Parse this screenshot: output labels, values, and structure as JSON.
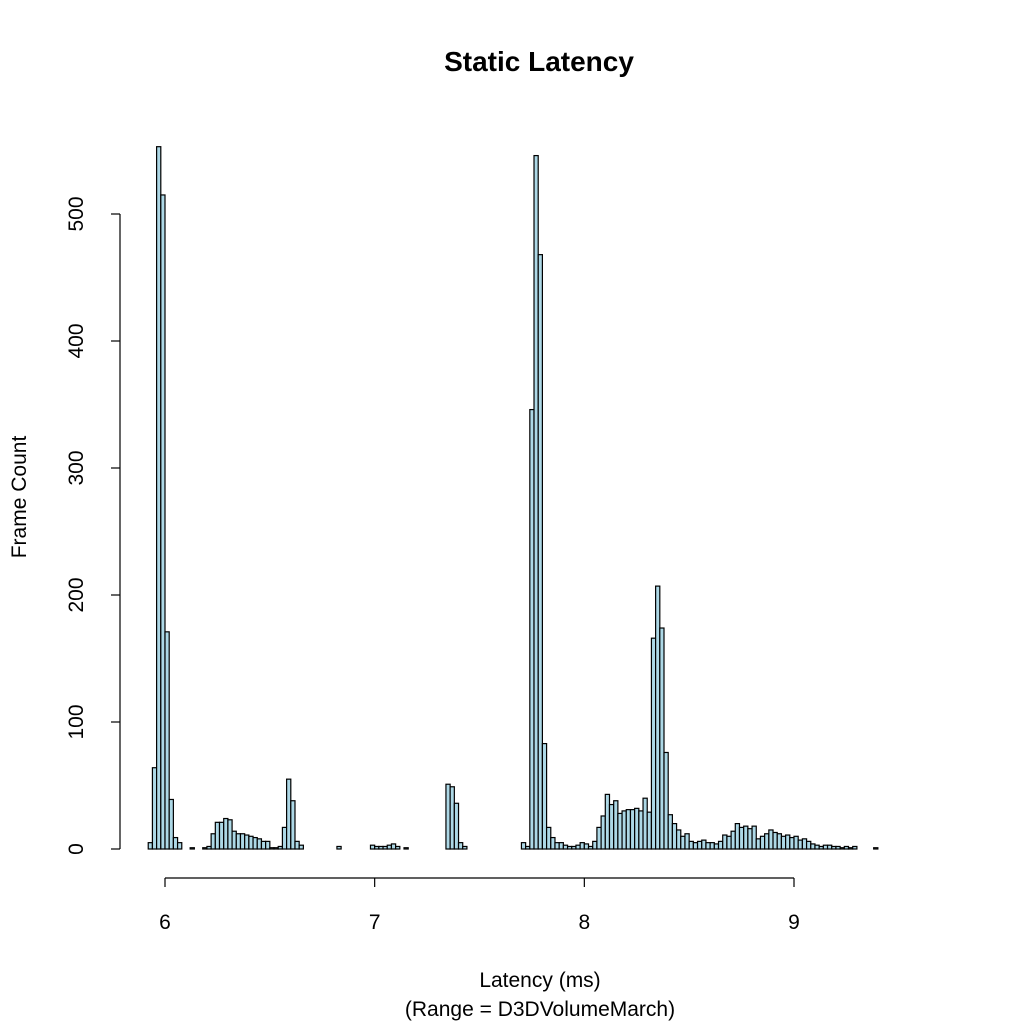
{
  "chart_data": {
    "type": "bar",
    "title": "Static Latency",
    "xlabel": "Latency (ms)",
    "xlabel_sub": "(Range = D3DVolumeMarch)",
    "ylabel": "Frame Count",
    "xlim": [
      5.9,
      9.7
    ],
    "ylim": [
      0,
      560
    ],
    "x_ticks": [
      6,
      7,
      8,
      9
    ],
    "y_ticks": [
      0,
      100,
      200,
      300,
      400,
      500
    ],
    "bin_width": 0.02,
    "bin_start": 5.92,
    "colors": {
      "bar_fill": "#add8e6",
      "bar_stroke": "#000000"
    },
    "grid": false,
    "legend": "none",
    "counts": [
      5,
      64,
      553,
      515,
      171,
      39,
      9,
      5,
      0,
      0,
      1,
      0,
      0,
      1,
      2,
      12,
      21,
      21,
      24,
      23,
      14,
      12,
      12,
      11,
      10,
      9,
      8,
      6,
      6,
      1,
      1,
      2,
      17,
      55,
      38,
      6,
      3,
      0,
      0,
      0,
      0,
      0,
      0,
      0,
      0,
      2,
      0,
      0,
      0,
      0,
      0,
      0,
      0,
      3,
      2,
      2,
      2,
      3,
      4,
      2,
      0,
      1,
      0,
      0,
      0,
      0,
      0,
      0,
      0,
      0,
      0,
      51,
      49,
      36,
      5,
      2,
      0,
      0,
      0,
      0,
      0,
      0,
      0,
      0,
      0,
      0,
      0,
      0,
      0,
      5,
      2,
      346,
      546,
      468,
      83,
      17,
      9,
      5,
      5,
      3,
      2,
      2,
      3,
      5,
      4,
      2,
      6,
      17,
      26,
      43,
      35,
      38,
      28,
      30,
      31,
      31,
      32,
      30,
      40,
      29,
      166,
      207,
      174,
      76,
      27,
      20,
      15,
      10,
      12,
      6,
      5,
      6,
      7,
      5,
      5,
      4,
      6,
      11,
      10,
      14,
      20,
      17,
      18,
      16,
      18,
      8,
      10,
      12,
      15,
      13,
      12,
      10,
      11,
      9,
      10,
      7,
      8,
      6,
      4,
      3,
      2,
      3,
      3,
      2,
      2,
      1,
      2,
      1,
      2,
      0,
      0,
      0,
      0,
      1,
      0,
      0,
      0,
      0,
      0,
      0,
      0,
      0,
      0,
      0,
      0,
      0,
      0,
      0,
      0,
      0,
      0,
      0,
      0,
      0,
      0,
      0,
      0,
      0,
      0,
      0,
      0,
      0,
      0,
      0,
      0,
      0,
      0,
      0,
      0,
      0,
      0,
      0,
      0,
      2
    ]
  }
}
